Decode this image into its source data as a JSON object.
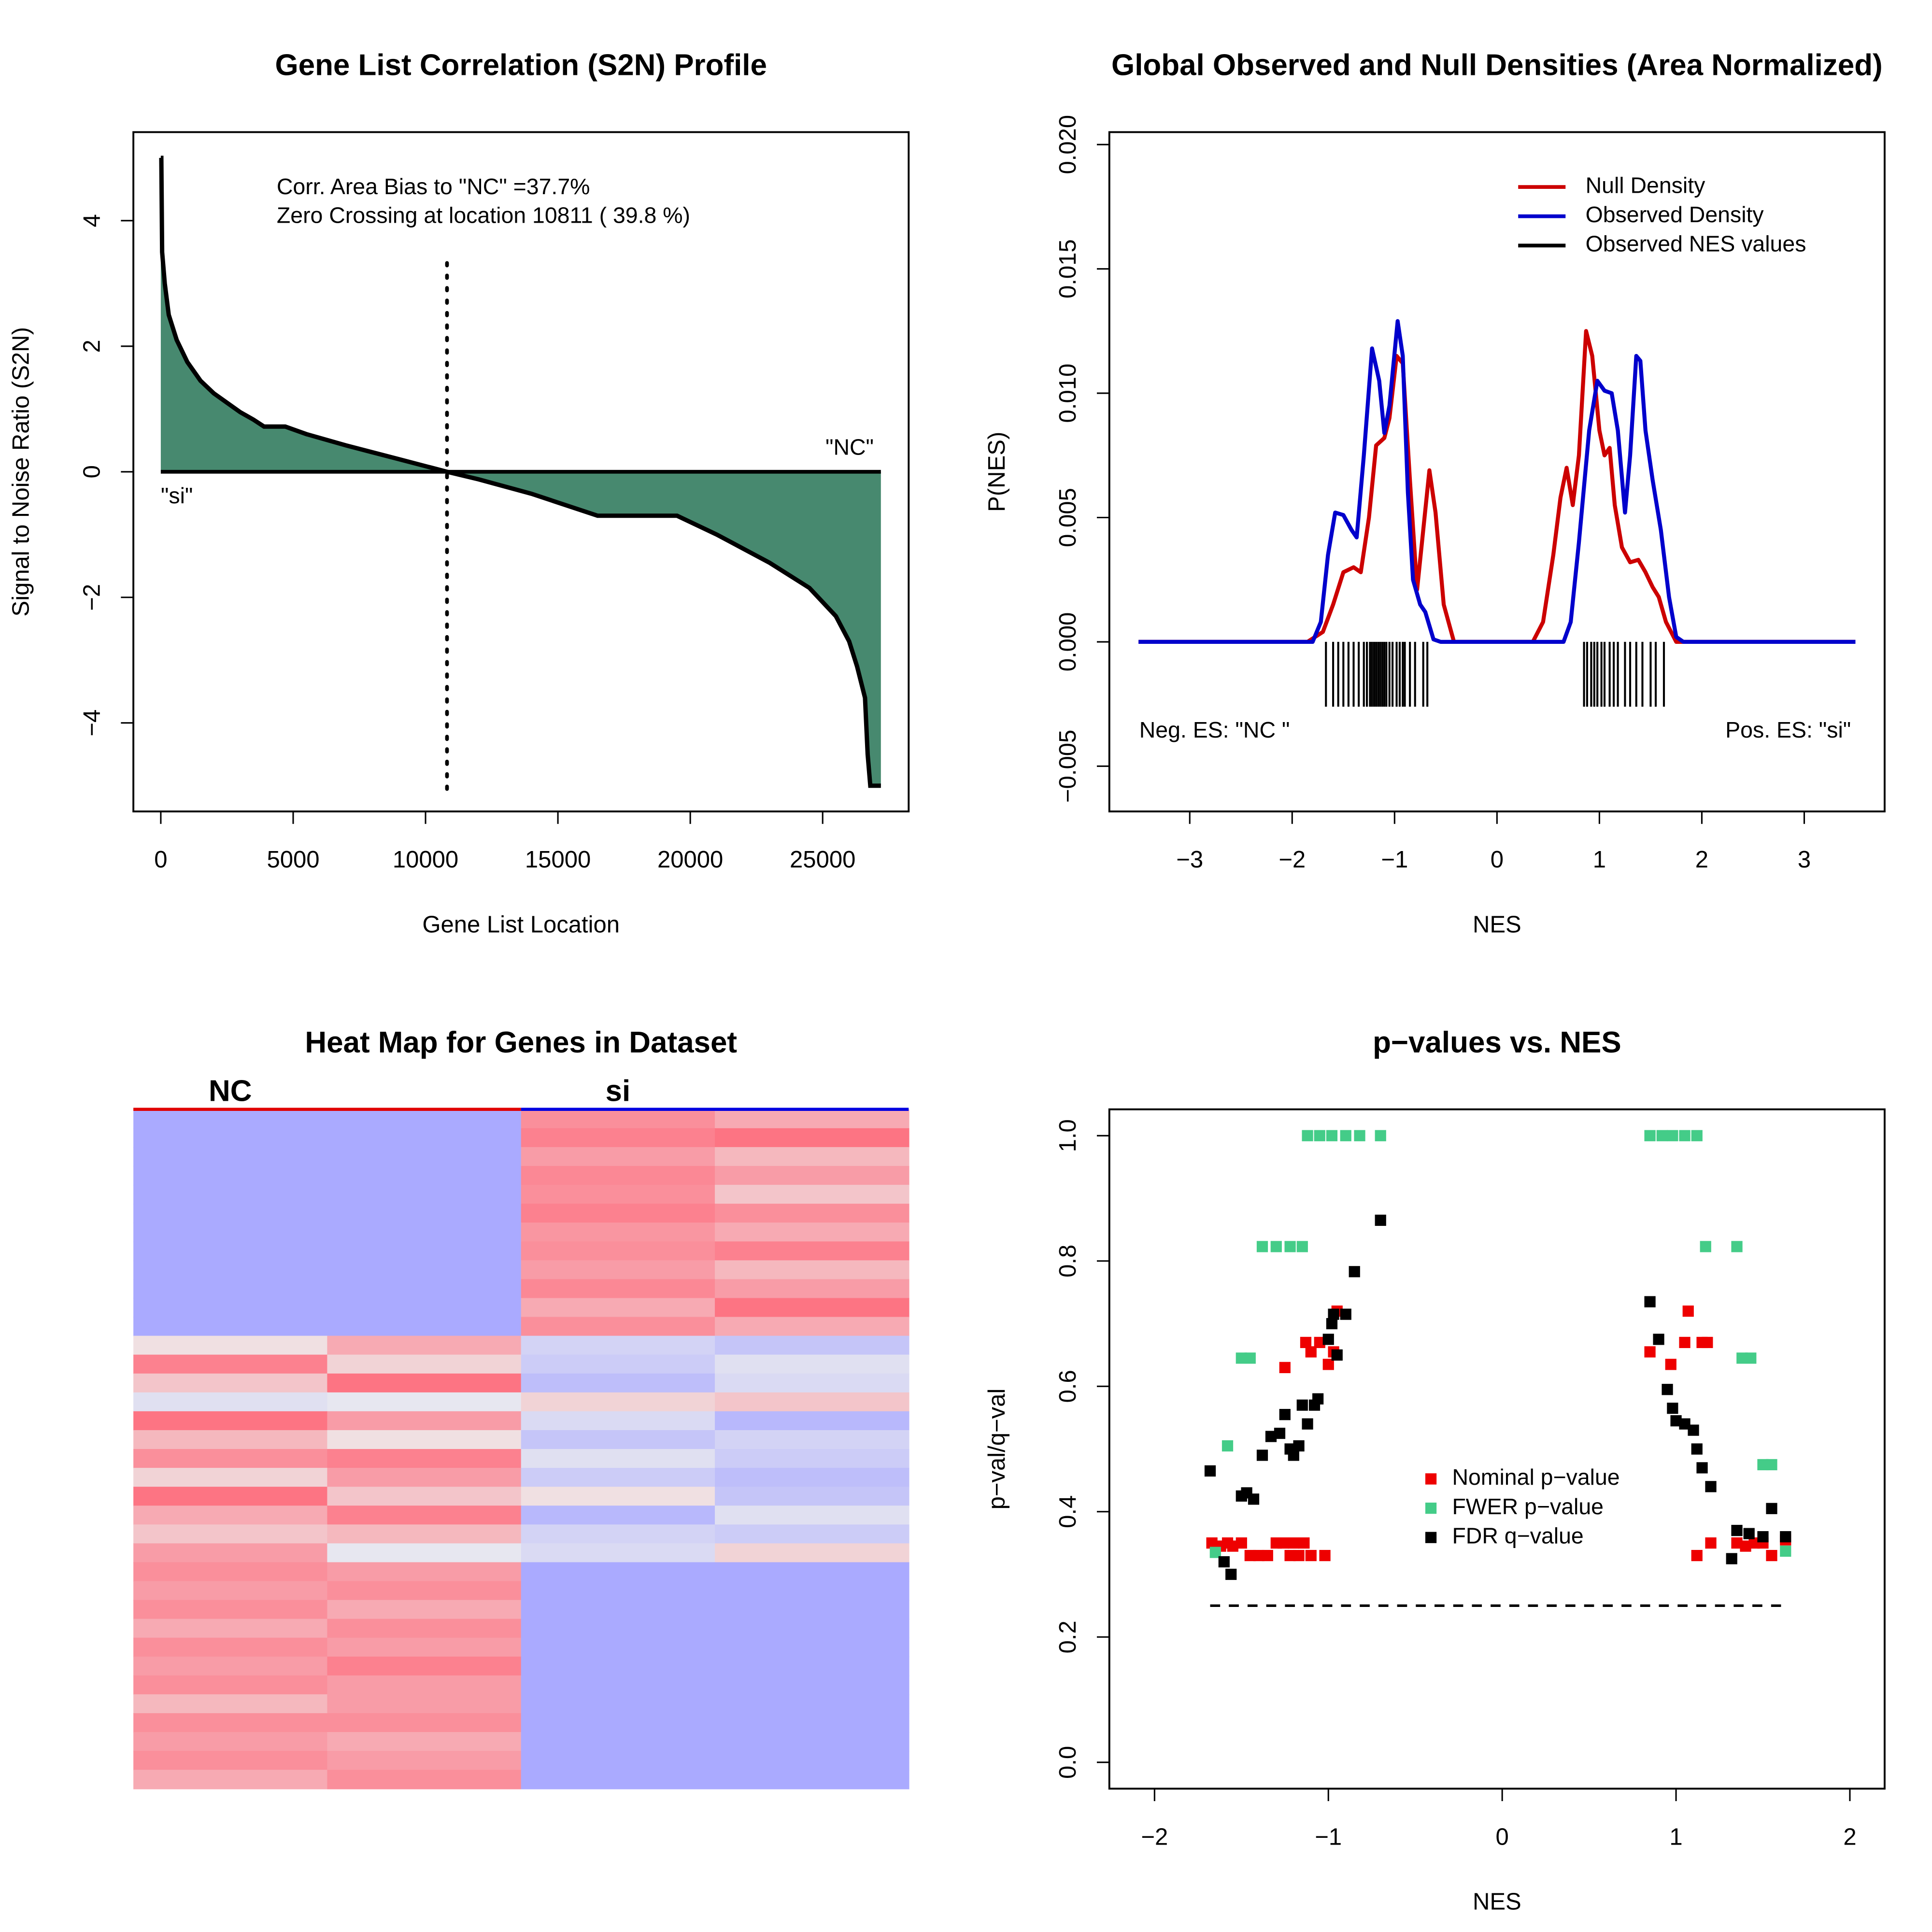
{
  "chart_data": [
    {
      "type": "area",
      "title": "Gene List Correlation (S2N) Profile",
      "xlabel": "Gene List Location",
      "ylabel": "Signal to Noise Ratio (S2N)",
      "x": [
        0,
        20,
        50,
        150,
        300,
        600,
        1000,
        1500,
        2000,
        2500,
        3000,
        3500,
        3900,
        4700,
        5500,
        7000,
        9000,
        10811,
        12000,
        14000,
        16500,
        19500,
        21000,
        23000,
        24500,
        25500,
        26000,
        26300,
        26600,
        26700,
        26800,
        27200
      ],
      "values": [
        5,
        5,
        3.5,
        3,
        2.5,
        2.1,
        1.75,
        1.45,
        1.25,
        1.1,
        0.95,
        0.83,
        0.72,
        0.72,
        0.6,
        0.42,
        0.2,
        0,
        -0.12,
        -0.35,
        -0.7,
        -0.7,
        -1.0,
        -1.45,
        -1.85,
        -2.3,
        -2.7,
        -3.1,
        -3.6,
        -4.5,
        -5,
        -5
      ],
      "color": "#47896f",
      "line_color": "#000000",
      "zero_crossing": 10811,
      "annotations": [
        "Corr. Area Bias to \"NC\" =37.7%",
        "Zero Crossing at location  10811  ( 39.8  %)",
        "\"NC\"",
        "\"si\""
      ],
      "xlim": [
        -1036,
        28249
      ],
      "ylim": [
        -5.41,
        5.41
      ],
      "xticks": [
        0,
        5000,
        10000,
        15000,
        20000,
        25000
      ],
      "yticks": [
        {
          "value": -4,
          "label": "−4"
        },
        {
          "value": -2,
          "label": "−2"
        },
        0,
        2,
        4
      ]
    },
    {
      "type": "line",
      "title": "Global Observed and Null Densities (Area Normalized)",
      "xlabel": "NES",
      "ylabel": "P(NES)",
      "series": [
        {
          "name": "Null Density",
          "color": "#cc0000",
          "x": [
            -3.5,
            -1.85,
            -1.7,
            -1.6,
            -1.5,
            -1.4,
            -1.33,
            -1.25,
            -1.18,
            -1.1,
            -1.05,
            -0.98,
            -0.92,
            -0.85,
            -0.78,
            -0.72,
            -0.66,
            -0.6,
            -0.52,
            -0.42,
            0.35,
            0.45,
            0.55,
            0.62,
            0.68,
            0.74,
            0.8,
            0.87,
            0.93,
            1.0,
            1.05,
            1.1,
            1.15,
            1.22,
            1.3,
            1.38,
            1.45,
            1.52,
            1.58,
            1.65,
            1.75,
            3.5
          ],
          "values": [
            0,
            0,
            0.0004,
            0.0015,
            0.0028,
            0.003,
            0.0028,
            0.005,
            0.0079,
            0.0082,
            0.009,
            0.0115,
            0.0112,
            0.0065,
            0.0021,
            0.0045,
            0.0069,
            0.0052,
            0.0015,
            0,
            0,
            0.0008,
            0.0035,
            0.0058,
            0.007,
            0.0055,
            0.0075,
            0.0125,
            0.0115,
            0.0085,
            0.0075,
            0.0078,
            0.0055,
            0.0038,
            0.0032,
            0.0033,
            0.0028,
            0.0022,
            0.0018,
            0.0008,
            0,
            0
          ]
        },
        {
          "name": "Observed Density",
          "color": "#0000cc",
          "x": [
            -3.5,
            -1.8,
            -1.72,
            -1.65,
            -1.58,
            -1.5,
            -1.42,
            -1.37,
            -1.3,
            -1.22,
            -1.15,
            -1.1,
            -1.05,
            -0.97,
            -0.92,
            -0.87,
            -0.82,
            -0.75,
            -0.7,
            -0.62,
            -0.55,
            0.65,
            0.72,
            0.8,
            0.9,
            0.98,
            1.05,
            1.12,
            1.18,
            1.25,
            1.3,
            1.36,
            1.4,
            1.45,
            1.52,
            1.6,
            1.68,
            1.75,
            1.82,
            3.5
          ],
          "values": [
            0,
            0,
            0.0008,
            0.0035,
            0.0052,
            0.0051,
            0.0045,
            0.0042,
            0.0075,
            0.0118,
            0.0105,
            0.0084,
            0.0095,
            0.0129,
            0.0115,
            0.006,
            0.0025,
            0.0015,
            0.0012,
            0.0001,
            0,
            0,
            0.0008,
            0.004,
            0.0085,
            0.0105,
            0.0101,
            0.01,
            0.0085,
            0.0052,
            0.0075,
            0.0115,
            0.0113,
            0.0085,
            0.0065,
            0.0045,
            0.0018,
            0.0002,
            0,
            0
          ]
        }
      ],
      "rug": {
        "name": "Observed NES values",
        "color": "#000000",
        "values": [
          -1.67,
          -1.6,
          -1.55,
          -1.5,
          -1.45,
          -1.4,
          -1.35,
          -1.3,
          -1.27,
          -1.24,
          -1.22,
          -1.2,
          -1.18,
          -1.16,
          -1.14,
          -1.12,
          -1.1,
          -1.08,
          -1.05,
          -1.02,
          -0.98,
          -0.95,
          -0.92,
          -0.9,
          -0.85,
          -0.8,
          -0.72,
          -0.68,
          0.85,
          0.88,
          0.92,
          0.95,
          0.98,
          1.02,
          1.05,
          1.1,
          1.14,
          1.18,
          1.25,
          1.3,
          1.36,
          1.42,
          1.5,
          1.55,
          1.63
        ]
      },
      "annotations": [
        "Neg. ES: \"NC \"",
        "Pos. ES: \"si\""
      ],
      "legend": "topright",
      "xlim": [
        -3.785,
        3.785
      ],
      "ylim": [
        -0.00682,
        0.0205
      ],
      "xticks": [
        {
          "value": -3,
          "label": "−3"
        },
        {
          "value": -2,
          "label": "−2"
        },
        {
          "value": -1,
          "label": "−1"
        },
        0,
        1,
        2,
        3
      ],
      "yticks": [
        {
          "value": -0.005,
          "label": "−0.005"
        },
        {
          "value": 0,
          "label": "0.000"
        },
        0.005,
        {
          "value": 0.01,
          "label": "0.010"
        },
        0.015,
        {
          "value": 0.02,
          "label": "0.020"
        }
      ]
    },
    {
      "type": "heatmap",
      "title": "Heat Map for Genes in Dataset",
      "groups": [
        {
          "name": "NC",
          "color": "#e00000"
        },
        {
          "name": "si",
          "color": "#0000e0"
        }
      ],
      "colors": {
        "low": "#aaaaff",
        "mid": "#eeeeee",
        "high": "#ff6677"
      },
      "colorlim": [
        -1,
        1
      ],
      "rows": [
        [
          -1,
          -1,
          0.7,
          0.5
        ],
        [
          -1,
          -1,
          0.8,
          0.9
        ],
        [
          -1,
          -1,
          0.6,
          0.4
        ],
        [
          -1,
          -1,
          0.75,
          0.6
        ],
        [
          -1,
          -1,
          0.7,
          0.3
        ],
        [
          -1,
          -1,
          0.8,
          0.7
        ],
        [
          -1,
          -1,
          0.65,
          0.5
        ],
        [
          -1,
          -1,
          0.7,
          0.8
        ],
        [
          -1,
          -1,
          0.6,
          0.4
        ],
        [
          -1,
          -1,
          0.75,
          0.6
        ],
        [
          -1,
          -1,
          0.5,
          0.9
        ],
        [
          -1,
          -1,
          0.7,
          0.5
        ],
        [
          0.1,
          0.5,
          -0.4,
          -0.6
        ],
        [
          0.8,
          0.2,
          -0.5,
          -0.2
        ],
        [
          0.3,
          0.9,
          -0.7,
          -0.3
        ],
        [
          -0.2,
          -0.1,
          0.2,
          0.3
        ],
        [
          0.9,
          0.6,
          -0.3,
          -0.8
        ],
        [
          0.4,
          0.1,
          -0.6,
          -0.4
        ],
        [
          0.7,
          0.8,
          -0.2,
          -0.5
        ],
        [
          0.2,
          0.6,
          -0.5,
          -0.7
        ],
        [
          0.9,
          0.3,
          0.1,
          -0.6
        ],
        [
          0.5,
          0.8,
          -0.8,
          -0.2
        ],
        [
          0.3,
          0.4,
          -0.4,
          -0.5
        ],
        [
          0.6,
          -0.1,
          -0.3,
          0.2
        ],
        [
          0.7,
          0.6,
          -1,
          -1
        ],
        [
          0.6,
          0.7,
          -1,
          -1
        ],
        [
          0.7,
          0.5,
          -1,
          -1
        ],
        [
          0.5,
          0.7,
          -1,
          -1
        ],
        [
          0.7,
          0.6,
          -1,
          -1
        ],
        [
          0.6,
          0.8,
          -1,
          -1
        ],
        [
          0.7,
          0.6,
          -1,
          -1
        ],
        [
          0.4,
          0.6,
          -1,
          -1
        ],
        [
          0.7,
          0.7,
          -1,
          -1
        ],
        [
          0.6,
          0.5,
          -1,
          -1
        ],
        [
          0.7,
          0.6,
          -1,
          -1
        ],
        [
          0.5,
          0.7,
          -1,
          -1
        ]
      ]
    },
    {
      "type": "scatter",
      "title": "p−values vs. NES",
      "xlabel": "NES",
      "ylabel": "p−val/q−val",
      "series": [
        {
          "name": "Nominal p−value",
          "color": "#ee0000",
          "x": [
            -1.67,
            -1.62,
            -1.58,
            -1.55,
            -1.5,
            -1.45,
            -1.4,
            -1.35,
            -1.3,
            -1.26,
            -1.22,
            -1.2,
            -1.17,
            -1.14,
            -1.1,
            -1.02,
            -1.25,
            -1.13,
            -1.1,
            -1.05,
            -1.0,
            -0.97,
            -0.95,
            0.85,
            0.97,
            1.05,
            1.07,
            1.15,
            1.18,
            1.12,
            1.2,
            1.35,
            1.4,
            1.45,
            1.5,
            1.55,
            1.63
          ],
          "values": [
            0.35,
            0.345,
            0.35,
            0.345,
            0.35,
            0.33,
            0.33,
            0.33,
            0.35,
            0.35,
            0.33,
            0.35,
            0.33,
            0.35,
            0.33,
            0.33,
            0.63,
            0.67,
            0.655,
            0.67,
            0.635,
            0.655,
            0.72,
            0.655,
            0.635,
            0.67,
            0.72,
            0.67,
            0.67,
            0.33,
            0.35,
            0.35,
            0.345,
            0.35,
            0.35,
            0.33,
            0.355
          ]
        },
        {
          "name": "FWER p−value",
          "color": "#44cc88",
          "x": [
            -1.65,
            -1.58,
            -1.5,
            -1.45,
            -1.38,
            -1.3,
            -1.22,
            -1.15,
            -1.12,
            -1.05,
            -0.98,
            -0.9,
            -0.82,
            -0.7,
            0.85,
            0.92,
            0.98,
            1.05,
            1.12,
            1.17,
            1.35,
            1.38,
            1.43,
            1.5,
            1.55,
            1.63
          ],
          "values": [
            0.335,
            0.505,
            0.645,
            0.645,
            0.823,
            0.823,
            0.823,
            0.823,
            1.0,
            1.0,
            1.0,
            1.0,
            1.0,
            1.0,
            1.0,
            1.0,
            1.0,
            1.0,
            1.0,
            0.823,
            0.823,
            0.645,
            0.645,
            0.475,
            0.475,
            0.337
          ]
        },
        {
          "name": "FDR q−value",
          "color": "#000000",
          "x": [
            -1.68,
            -1.6,
            -1.56,
            -1.5,
            -1.47,
            -1.43,
            -1.38,
            -1.33,
            -1.28,
            -1.25,
            -1.22,
            -1.2,
            -1.17,
            -1.15,
            -1.12,
            -1.08,
            -1.06,
            -1.0,
            -0.98,
            -0.97,
            -0.95,
            -0.9,
            -0.85,
            -0.7,
            0.85,
            0.9,
            0.95,
            0.98,
            1.0,
            1.05,
            1.1,
            1.12,
            1.15,
            1.2,
            1.32,
            1.35,
            1.42,
            1.5,
            1.55,
            1.63
          ],
          "values": [
            0.465,
            0.32,
            0.3,
            0.425,
            0.43,
            0.42,
            0.49,
            0.52,
            0.525,
            0.555,
            0.5,
            0.49,
            0.505,
            0.57,
            0.54,
            0.57,
            0.58,
            0.675,
            0.7,
            0.715,
            0.65,
            0.715,
            0.783,
            0.865,
            0.735,
            0.675,
            0.595,
            0.565,
            0.545,
            0.54,
            0.53,
            0.5,
            0.47,
            0.44,
            0.325,
            0.37,
            0.365,
            0.36,
            0.405,
            0.36
          ]
        }
      ],
      "hline": 0.25,
      "legend": "center",
      "xlim": [
        -2.26,
        2.2
      ],
      "ylim": [
        -0.042,
        1.042
      ],
      "xticks": [
        {
          "value": -2,
          "label": "−2"
        },
        {
          "value": -1,
          "label": "−1"
        },
        0,
        1,
        2
      ],
      "yticks": [
        {
          "value": 0,
          "label": "0.0"
        },
        0.2,
        0.4,
        0.6,
        0.8,
        {
          "value": 1,
          "label": "1.0"
        }
      ]
    }
  ]
}
